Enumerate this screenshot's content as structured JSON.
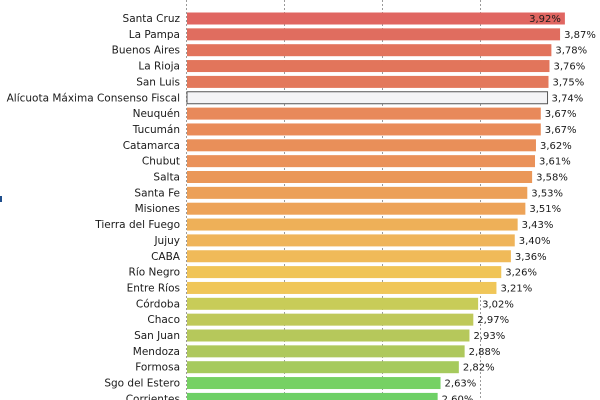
{
  "chart_data": {
    "type": "bar",
    "orientation": "horizontal",
    "title": "",
    "xlabel": "",
    "ylabel": "",
    "grid": true,
    "xlim": [
      0,
      4
    ],
    "highlight_category": "Alícuota Máxima Consenso Fiscal",
    "categories": [
      "Santa Cruz",
      "La Pampa",
      "Buenos Aires",
      "La Rioja",
      "San Luis",
      "Alícuota Máxima Consenso Fiscal",
      "Neuquén",
      "Tucumán",
      "Catamarca",
      "Chubut",
      "Salta",
      "Santa Fe",
      "Misiones",
      "Tierra del Fuego",
      "Jujuy",
      "CABA",
      "Río Negro",
      "Entre Ríos",
      "Córdoba",
      "Chaco",
      "San Juan",
      "Mendoza",
      "Formosa",
      "Sgo del Estero",
      "Corrientes"
    ],
    "values": [
      3.92,
      3.87,
      3.78,
      3.76,
      3.75,
      3.74,
      3.67,
      3.67,
      3.62,
      3.61,
      3.58,
      3.53,
      3.51,
      3.43,
      3.4,
      3.36,
      3.26,
      3.21,
      3.02,
      2.97,
      2.93,
      2.88,
      2.82,
      2.63,
      2.6
    ],
    "value_labels": [
      "3,92%",
      "3,87%",
      "3,78%",
      "3,76%",
      "3,75%",
      "3,74%",
      "3,67%",
      "3,67%",
      "3,62%",
      "3,61%",
      "3,58%",
      "3,53%",
      "3,51%",
      "3,43%",
      "3,40%",
      "3,36%",
      "3,26%",
      "3,21%",
      "3,02%",
      "2,97%",
      "2,93%",
      "2,88%",
      "2,82%",
      "2,63%",
      "2,60%"
    ],
    "colors": [
      "#e06661",
      "#e06d5f",
      "#e2735c",
      "#e2755b",
      "#e3785b",
      "#f4f4f6",
      "#e8895a",
      "#e98b59",
      "#e98f59",
      "#ea9159",
      "#ea9758",
      "#eca058",
      "#eda358",
      "#eeb058",
      "#efb45a",
      "#f0ba59",
      "#f0c457",
      "#f0c658",
      "#c8cc58",
      "#bfc95a",
      "#b6c85b",
      "#aec85c",
      "#a6ca5d",
      "#76d163",
      "#6ed066"
    ]
  }
}
